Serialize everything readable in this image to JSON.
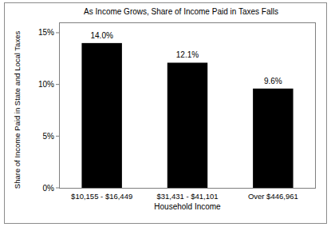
{
  "chart_data": {
    "type": "bar",
    "title": "As Income Grows, Share of Income Paid in Taxes Falls",
    "x_label": "Household Income",
    "y_label": "Share of Income Paid in State and Local Taxes",
    "categories": [
      "$10,155 - $16,449",
      "$31,431 - $41,101",
      "Over $446,961"
    ],
    "values": [
      14.0,
      12.1,
      9.6
    ],
    "value_labels": [
      "14.0%",
      "12.1%",
      "9.6%"
    ],
    "color": "#000000",
    "ylim": [
      0,
      16
    ],
    "yticks": [
      {
        "value": 0,
        "label": "0%"
      },
      {
        "value": 5,
        "label": "5%"
      },
      {
        "value": 10,
        "label": "10%"
      },
      {
        "value": 15,
        "label": "15%"
      }
    ],
    "grid": false,
    "data_labels": true
  }
}
